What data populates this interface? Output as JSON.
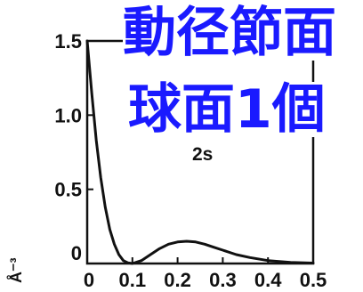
{
  "overlay": {
    "line1": "動径節面",
    "line2": "球面1個",
    "color": "#1a1aff"
  },
  "chart_data": {
    "type": "line",
    "title": "",
    "plot_label": "2s",
    "xlabel": "",
    "ylabel": "Å⁻³",
    "xlim": [
      0,
      0.5
    ],
    "ylim": [
      0,
      1.5
    ],
    "x_ticks": [
      "0",
      "0.1",
      "0.2",
      "0.3",
      "0.4",
      "0.5"
    ],
    "y_ticks": [
      "0",
      "0.5",
      "1.0",
      "1.5"
    ],
    "series": [
      {
        "x": [
          0.0,
          0.01,
          0.02,
          0.03,
          0.04,
          0.05,
          0.06,
          0.07,
          0.08,
          0.09,
          0.1,
          0.12,
          0.14,
          0.16,
          0.18,
          0.2,
          0.22,
          0.24,
          0.26,
          0.28,
          0.3,
          0.33,
          0.36,
          0.4,
          0.45,
          0.5
        ],
        "y": [
          1.5,
          1.15,
          0.83,
          0.58,
          0.38,
          0.23,
          0.13,
          0.06,
          0.02,
          0.005,
          0.0,
          0.02,
          0.06,
          0.1,
          0.13,
          0.145,
          0.15,
          0.145,
          0.13,
          0.11,
          0.09,
          0.06,
          0.04,
          0.02,
          0.008,
          0.003
        ]
      }
    ],
    "grid": false,
    "legend": "none"
  }
}
